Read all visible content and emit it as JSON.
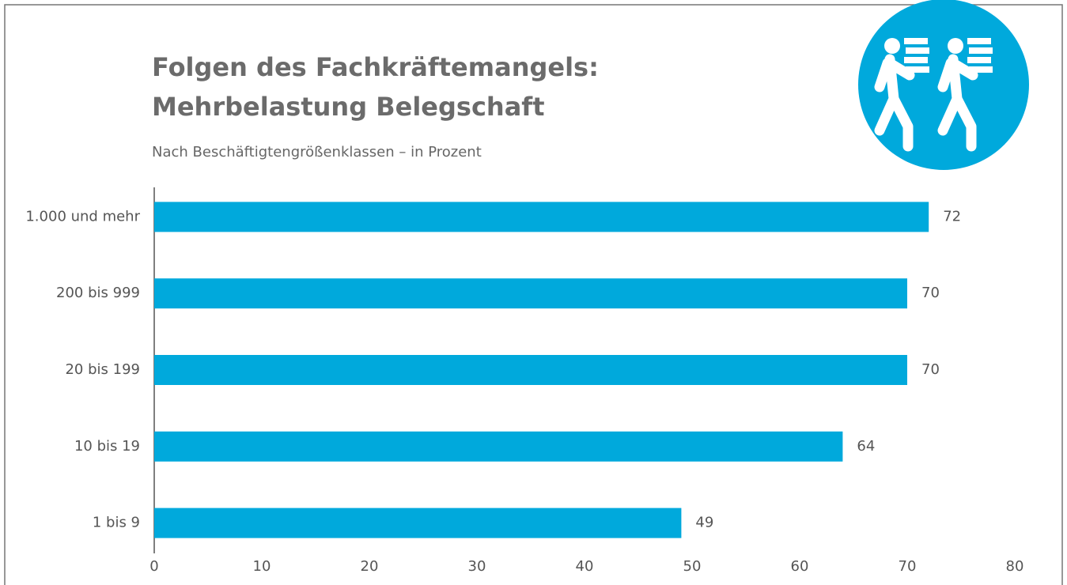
{
  "chart_data": {
    "type": "hbar",
    "title": [
      "Folgen des Fachkräftemangels:",
      "Mehrbelastung Belegschaft"
    ],
    "subtitle": "Nach Beschäftigtengrößenklassen – in Prozent",
    "categories": [
      "1.000 und mehr",
      "200 bis 999",
      "20 bis 199",
      "10 bis 19",
      "1 bis 9"
    ],
    "values": [
      72,
      70,
      70,
      64,
      49
    ],
    "color": "#00a9dc",
    "xlim": [
      0,
      80
    ],
    "xticks": [
      0,
      10,
      20,
      30,
      40,
      50,
      60,
      70,
      80
    ],
    "grid": false
  }
}
